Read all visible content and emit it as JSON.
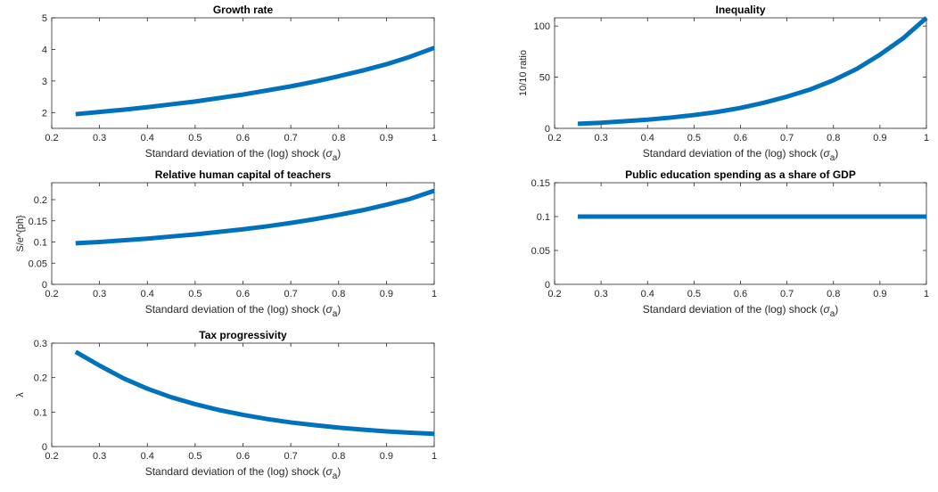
{
  "chart_data": [
    {
      "id": "growth",
      "type": "line",
      "title": "Growth rate",
      "xlabel": "Standard deviation of the (log) shock (σa)",
      "ylabel": "",
      "xlim": [
        0.2,
        1
      ],
      "ylim": [
        1.5,
        5
      ],
      "xticks": [
        "0.2",
        "0.3",
        "0.4",
        "0.5",
        "0.6",
        "0.7",
        "0.8",
        "0.9",
        "1"
      ],
      "yticks": [
        "2",
        "3",
        "4",
        "5"
      ],
      "ytick_values": [
        2,
        3,
        4,
        5
      ],
      "color": "#0072BD",
      "x": [
        0.25,
        0.3,
        0.35,
        0.4,
        0.45,
        0.5,
        0.55,
        0.6,
        0.65,
        0.7,
        0.75,
        0.8,
        0.85,
        0.9,
        0.95,
        1.0
      ],
      "y": [
        1.95,
        2.02,
        2.09,
        2.17,
        2.26,
        2.35,
        2.46,
        2.57,
        2.7,
        2.83,
        2.98,
        3.15,
        3.33,
        3.53,
        3.77,
        4.05
      ]
    },
    {
      "id": "inequality",
      "type": "line",
      "title": "Inequality",
      "xlabel": "Standard deviation of the (log) shock (σa)",
      "ylabel": "10/10 ratio",
      "xlim": [
        0.2,
        1
      ],
      "ylim": [
        0,
        108
      ],
      "xticks": [
        "0.2",
        "0.3",
        "0.4",
        "0.5",
        "0.6",
        "0.7",
        "0.8",
        "0.9",
        "1"
      ],
      "yticks": [
        "0",
        "50",
        "100"
      ],
      "ytick_values": [
        0,
        50,
        100
      ],
      "color": "#0072BD",
      "x": [
        0.25,
        0.3,
        0.35,
        0.4,
        0.45,
        0.5,
        0.55,
        0.6,
        0.65,
        0.7,
        0.75,
        0.8,
        0.85,
        0.9,
        0.95,
        1.0
      ],
      "y": [
        4.5,
        5.5,
        7,
        8.5,
        10.5,
        13,
        16,
        20,
        25,
        31,
        38,
        47,
        58,
        72,
        88,
        108
      ]
    },
    {
      "id": "teachers",
      "type": "line",
      "title": "Relative human capital of teachers",
      "xlabel": "Standard deviation of the (log) shock (σa)",
      "ylabel": "S/e^(p h)",
      "xlim": [
        0.2,
        1
      ],
      "ylim": [
        0,
        0.24
      ],
      "xticks": [
        "0.2",
        "0.3",
        "0.4",
        "0.5",
        "0.6",
        "0.7",
        "0.8",
        "0.9",
        "1"
      ],
      "yticks": [
        "0",
        "0.05",
        "0.1",
        "0.15",
        "0.2"
      ],
      "ytick_values": [
        0,
        0.05,
        0.1,
        0.15,
        0.2
      ],
      "color": "#0072BD",
      "x": [
        0.25,
        0.3,
        0.35,
        0.4,
        0.45,
        0.5,
        0.55,
        0.6,
        0.65,
        0.7,
        0.75,
        0.8,
        0.85,
        0.9,
        0.95,
        1.0
      ],
      "y": [
        0.097,
        0.1,
        0.104,
        0.108,
        0.113,
        0.118,
        0.124,
        0.13,
        0.137,
        0.145,
        0.154,
        0.164,
        0.175,
        0.188,
        0.202,
        0.221
      ]
    },
    {
      "id": "education",
      "type": "line",
      "title": "Public education spending as a share of GDP",
      "xlabel": "Standard deviation of the (log) shock (σa)",
      "ylabel": "",
      "xlim": [
        0.2,
        1
      ],
      "ylim": [
        0,
        0.15
      ],
      "xticks": [
        "0.2",
        "0.3",
        "0.4",
        "0.5",
        "0.6",
        "0.7",
        "0.8",
        "0.9",
        "1"
      ],
      "yticks": [
        "0",
        "0.05",
        "0.1",
        "0.15"
      ],
      "ytick_values": [
        0,
        0.05,
        0.1,
        0.15
      ],
      "color": "#0072BD",
      "x": [
        0.25,
        1.0
      ],
      "y": [
        0.1,
        0.1
      ]
    },
    {
      "id": "tax",
      "type": "line",
      "title": "Tax progressivity",
      "xlabel": "Standard deviation of the (log) shock (σa)",
      "ylabel": "λ",
      "xlim": [
        0.2,
        1
      ],
      "ylim": [
        0,
        0.3
      ],
      "xticks": [
        "0.2",
        "0.3",
        "0.4",
        "0.5",
        "0.6",
        "0.7",
        "0.8",
        "0.9",
        "1"
      ],
      "yticks": [
        "0",
        "0.1",
        "0.2",
        "0.3"
      ],
      "ytick_values": [
        0,
        0.1,
        0.2,
        0.3
      ],
      "color": "#0072BD",
      "x": [
        0.25,
        0.3,
        0.35,
        0.4,
        0.45,
        0.5,
        0.55,
        0.6,
        0.65,
        0.7,
        0.75,
        0.8,
        0.85,
        0.9,
        0.95,
        1.0
      ],
      "y": [
        0.275,
        0.235,
        0.198,
        0.168,
        0.143,
        0.123,
        0.106,
        0.092,
        0.08,
        0.07,
        0.062,
        0.055,
        0.049,
        0.044,
        0.04,
        0.037
      ]
    }
  ]
}
